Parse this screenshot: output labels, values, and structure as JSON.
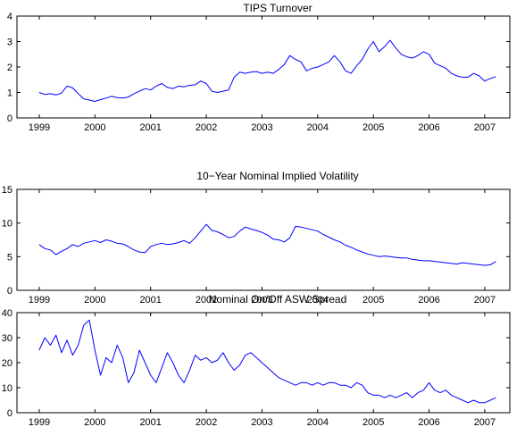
{
  "chart_data": [
    {
      "type": "line",
      "title": "TIPS Turnover",
      "xlabel": "",
      "ylabel": "",
      "xlim": [
        1998.6,
        2007.45
      ],
      "ylim": [
        0,
        4
      ],
      "x_ticks": [
        1999,
        2000,
        2001,
        2002,
        2003,
        2004,
        2005,
        2006,
        2007
      ],
      "y_ticks": [
        0,
        1,
        2,
        3,
        4
      ],
      "grid": false,
      "series": [
        {
          "color": "#0000ff",
          "x": [
            1999.0,
            1999.1,
            1999.2,
            1999.3,
            1999.4,
            1999.5,
            1999.6,
            1999.7,
            1999.8,
            1999.9,
            2000.0,
            2000.1,
            2000.2,
            2000.3,
            2000.4,
            2000.5,
            2000.6,
            2000.7,
            2000.8,
            2000.9,
            2001.0,
            2001.1,
            2001.2,
            2001.3,
            2001.4,
            2001.5,
            2001.6,
            2001.7,
            2001.8,
            2001.9,
            2002.0,
            2002.1,
            2002.2,
            2002.3,
            2002.4,
            2002.5,
            2002.6,
            2002.7,
            2002.8,
            2002.9,
            2003.0,
            2003.1,
            2003.2,
            2003.3,
            2003.4,
            2003.5,
            2003.6,
            2003.7,
            2003.8,
            2003.9,
            2004.0,
            2004.1,
            2004.2,
            2004.3,
            2004.4,
            2004.5,
            2004.6,
            2004.7,
            2004.8,
            2004.9,
            2005.0,
            2005.1,
            2005.2,
            2005.3,
            2005.4,
            2005.5,
            2005.6,
            2005.7,
            2005.8,
            2005.9,
            2006.0,
            2006.1,
            2006.2,
            2006.3,
            2006.4,
            2006.5,
            2006.6,
            2006.7,
            2006.8,
            2006.9,
            2007.0,
            2007.1,
            2007.2
          ],
          "values": [
            1.0,
            0.92,
            0.95,
            0.9,
            0.98,
            1.25,
            1.18,
            0.95,
            0.75,
            0.7,
            0.65,
            0.72,
            0.78,
            0.85,
            0.8,
            0.78,
            0.82,
            0.95,
            1.05,
            1.15,
            1.1,
            1.25,
            1.35,
            1.2,
            1.15,
            1.25,
            1.22,
            1.28,
            1.3,
            1.45,
            1.35,
            1.05,
            1.0,
            1.05,
            1.1,
            1.6,
            1.8,
            1.75,
            1.8,
            1.82,
            1.75,
            1.8,
            1.75,
            1.9,
            2.1,
            2.45,
            2.3,
            2.2,
            1.85,
            1.95,
            2.0,
            2.1,
            2.2,
            2.45,
            2.2,
            1.85,
            1.75,
            2.05,
            2.3,
            2.7,
            3.0,
            2.6,
            2.8,
            3.05,
            2.75,
            2.5,
            2.4,
            2.35,
            2.45,
            2.6,
            2.5,
            2.15,
            2.05,
            1.95,
            1.75,
            1.65,
            1.6,
            1.6,
            1.75,
            1.65,
            1.45,
            1.55,
            1.62
          ]
        }
      ]
    },
    {
      "type": "line",
      "title": "10−Year Nominal Implied Volatility",
      "xlabel": "",
      "ylabel": "",
      "xlim": [
        1998.6,
        2007.45
      ],
      "ylim": [
        0,
        15
      ],
      "x_ticks": [
        1999,
        2000,
        2001,
        2002,
        2003,
        2004,
        2005,
        2006,
        2007
      ],
      "y_ticks": [
        0,
        5,
        10,
        15
      ],
      "grid": false,
      "series": [
        {
          "color": "#0000ff",
          "x": [
            1999.0,
            1999.1,
            1999.2,
            1999.3,
            1999.4,
            1999.5,
            1999.6,
            1999.7,
            1999.8,
            1999.9,
            2000.0,
            2000.1,
            2000.2,
            2000.3,
            2000.4,
            2000.5,
            2000.6,
            2000.7,
            2000.8,
            2000.9,
            2001.0,
            2001.1,
            2001.2,
            2001.3,
            2001.4,
            2001.5,
            2001.6,
            2001.7,
            2001.8,
            2001.9,
            2002.0,
            2002.1,
            2002.2,
            2002.3,
            2002.4,
            2002.5,
            2002.6,
            2002.7,
            2002.8,
            2002.9,
            2003.0,
            2003.1,
            2003.2,
            2003.3,
            2003.4,
            2003.5,
            2003.6,
            2003.7,
            2003.8,
            2003.9,
            2004.0,
            2004.1,
            2004.2,
            2004.3,
            2004.4,
            2004.5,
            2004.6,
            2004.7,
            2004.8,
            2004.9,
            2005.0,
            2005.1,
            2005.2,
            2005.3,
            2005.4,
            2005.5,
            2005.6,
            2005.7,
            2005.8,
            2005.9,
            2006.0,
            2006.1,
            2006.2,
            2006.3,
            2006.4,
            2006.5,
            2006.6,
            2006.7,
            2006.8,
            2006.9,
            2007.0,
            2007.1,
            2007.2
          ],
          "values": [
            6.8,
            6.2,
            6.0,
            5.3,
            5.8,
            6.2,
            6.8,
            6.5,
            7.0,
            7.2,
            7.4,
            7.1,
            7.5,
            7.3,
            7.0,
            6.9,
            6.5,
            6.0,
            5.7,
            5.6,
            6.5,
            6.8,
            7.0,
            6.8,
            6.9,
            7.1,
            7.4,
            7.0,
            7.8,
            8.8,
            9.8,
            8.9,
            8.7,
            8.3,
            7.8,
            8.0,
            8.8,
            9.4,
            9.1,
            8.9,
            8.6,
            8.2,
            7.6,
            7.5,
            7.2,
            7.8,
            9.5,
            9.4,
            9.2,
            9.0,
            8.8,
            8.3,
            7.9,
            7.5,
            7.2,
            6.7,
            6.4,
            6.0,
            5.7,
            5.4,
            5.2,
            5.0,
            5.1,
            5.0,
            4.9,
            4.8,
            4.8,
            4.6,
            4.5,
            4.4,
            4.4,
            4.3,
            4.2,
            4.1,
            4.0,
            3.9,
            4.1,
            4.0,
            3.9,
            3.8,
            3.7,
            3.8,
            4.3
          ]
        }
      ]
    },
    {
      "type": "line",
      "title": "Nominal On/Off ASW Spread",
      "xlabel": "",
      "ylabel": "",
      "xlim": [
        1998.6,
        2007.45
      ],
      "ylim": [
        0,
        40
      ],
      "x_ticks": [
        1999,
        2000,
        2001,
        2002,
        2003,
        2004,
        2005,
        2006,
        2007
      ],
      "y_ticks": [
        0,
        10,
        20,
        30,
        40
      ],
      "grid": false,
      "series": [
        {
          "color": "#0000ff",
          "x": [
            1999.0,
            1999.1,
            1999.2,
            1999.3,
            1999.4,
            1999.5,
            1999.6,
            1999.7,
            1999.8,
            1999.9,
            2000.0,
            2000.1,
            2000.2,
            2000.3,
            2000.4,
            2000.5,
            2000.6,
            2000.7,
            2000.8,
            2000.9,
            2001.0,
            2001.1,
            2001.2,
            2001.3,
            2001.4,
            2001.5,
            2001.6,
            2001.7,
            2001.8,
            2001.9,
            2002.0,
            2002.1,
            2002.2,
            2002.3,
            2002.4,
            2002.5,
            2002.6,
            2002.7,
            2002.8,
            2002.9,
            2003.0,
            2003.1,
            2003.2,
            2003.3,
            2003.4,
            2003.5,
            2003.6,
            2003.7,
            2003.8,
            2003.9,
            2004.0,
            2004.1,
            2004.2,
            2004.3,
            2004.4,
            2004.5,
            2004.6,
            2004.7,
            2004.8,
            2004.9,
            2005.0,
            2005.1,
            2005.2,
            2005.3,
            2005.4,
            2005.5,
            2005.6,
            2005.7,
            2005.8,
            2005.9,
            2006.0,
            2006.1,
            2006.2,
            2006.3,
            2006.4,
            2006.5,
            2006.6,
            2006.7,
            2006.8,
            2006.9,
            2007.0,
            2007.1,
            2007.2
          ],
          "values": [
            25,
            30,
            27,
            31,
            24,
            29,
            23,
            27,
            35,
            37,
            25,
            15,
            22,
            20,
            27,
            22,
            12,
            16,
            25,
            20,
            15,
            12,
            18,
            24,
            20,
            15,
            12,
            17,
            23,
            21,
            22,
            20,
            21,
            24,
            20,
            17,
            19,
            23,
            24,
            22,
            20,
            18,
            16,
            14,
            13,
            12,
            11,
            12,
            12,
            11,
            12,
            11,
            12,
            12,
            11,
            11,
            10,
            12,
            11,
            8,
            7,
            7,
            6,
            7,
            6,
            7,
            8,
            6,
            8,
            9,
            12,
            9,
            8,
            9,
            7,
            6,
            5,
            4,
            5,
            4,
            4,
            5,
            6
          ]
        }
      ]
    }
  ]
}
